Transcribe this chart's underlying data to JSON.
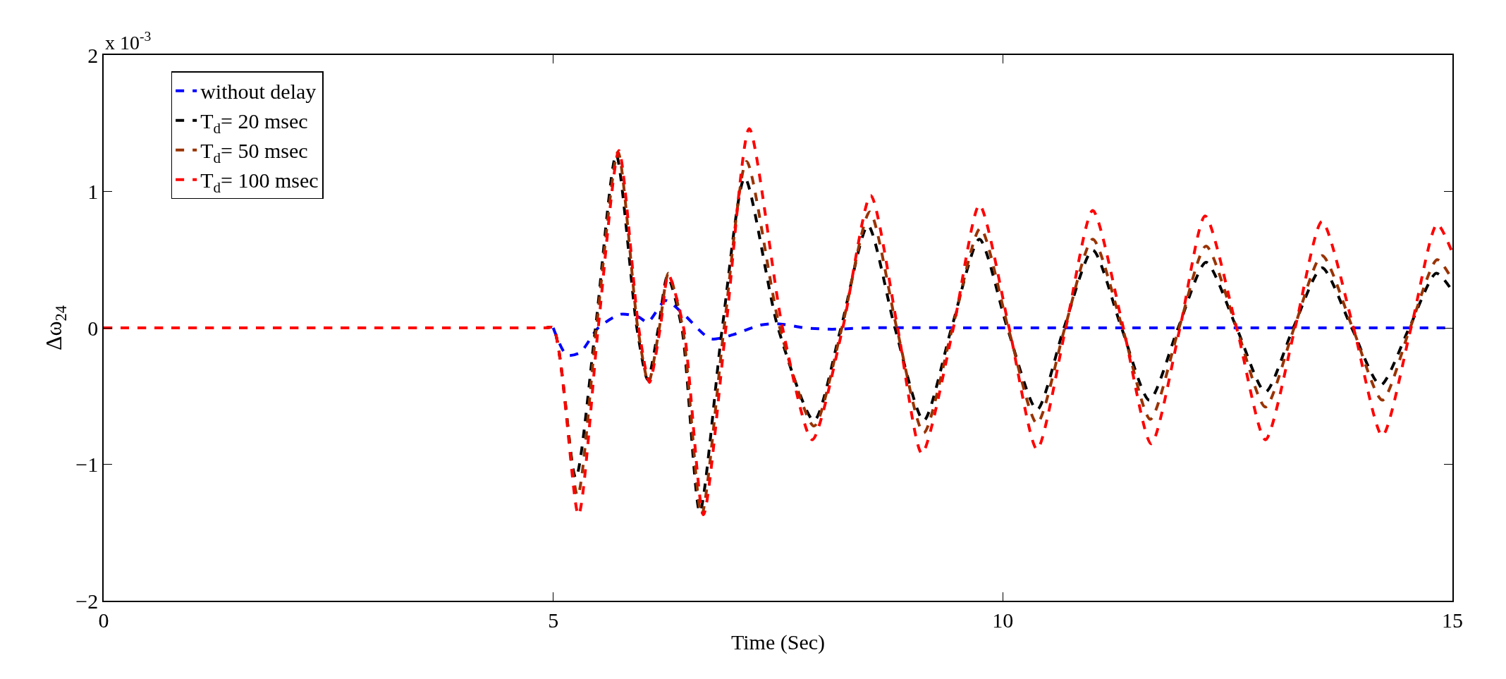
{
  "chart_data": {
    "type": "line",
    "xlabel": "Time (Sec)",
    "ylabel": "Δω$_{24}$",
    "annotations": [
      "x 10$^{-3}$"
    ],
    "xlim": [
      0,
      15
    ],
    "xticks": [
      0,
      5,
      10,
      15
    ],
    "ylim": [
      -2,
      2
    ],
    "yticks": [
      -2,
      -1,
      0,
      1,
      2
    ],
    "legend": "top left",
    "line_style": "dashed",
    "marker": "none",
    "series": [
      {
        "name": "without delay",
        "color": "#0000ff",
        "x": [
          5,
          5.15,
          5.3,
          5.5,
          5.75,
          5.95,
          6.05,
          6.25,
          6.45,
          6.75,
          7.0,
          7.3,
          7.5,
          7.8,
          8.1,
          8.5,
          10,
          12,
          15
        ],
        "values": [
          0,
          -0.2,
          -0.18,
          0,
          0.1,
          0.08,
          0.04,
          0.2,
          0.1,
          -0.08,
          -0.05,
          0.02,
          0.03,
          0,
          -0.01,
          0,
          0,
          0,
          0
        ]
      },
      {
        "name": "T$_{d}$= 20 msec",
        "color": "#000000",
        "x": [
          0,
          4.9,
          5,
          5.25,
          5.47,
          5.7,
          5.93,
          6.05,
          6.17,
          6.27,
          6.43,
          6.63,
          6.88,
          7.13,
          7.5,
          7.9,
          8.2,
          8.5,
          8.8,
          9.12,
          9.43,
          9.74,
          10.05,
          10.38,
          10.68,
          11.0,
          11.32,
          11.63,
          11.95,
          12.26,
          12.6,
          12.92,
          13.23,
          13.55,
          13.88,
          14.2,
          14.52,
          14.82,
          15
        ],
        "values": [
          0,
          0,
          0,
          -1.1,
          0,
          1.27,
          0,
          -0.38,
          0,
          0.38,
          0,
          -1.35,
          0,
          1.1,
          0,
          -0.68,
          0,
          0.75,
          0,
          -0.68,
          0,
          0.65,
          0,
          -0.6,
          0,
          0.57,
          0,
          -0.53,
          0,
          0.48,
          0,
          -0.47,
          0,
          0.44,
          0,
          -0.42,
          0,
          0.4,
          0.27
        ]
      },
      {
        "name": "T$_{d}$= 50 msec",
        "color": "#993300",
        "x": [
          0,
          4.9,
          5,
          5.27,
          5.48,
          5.72,
          5.94,
          6.06,
          6.18,
          6.28,
          6.44,
          6.65,
          6.9,
          7.15,
          7.52,
          7.9,
          8.21,
          8.52,
          8.82,
          9.12,
          9.44,
          9.75,
          10.06,
          10.38,
          10.69,
          11.0,
          11.33,
          11.64,
          11.96,
          12.26,
          12.6,
          12.92,
          13.24,
          13.55,
          13.89,
          14.22,
          14.53,
          14.83,
          15
        ],
        "values": [
          0,
          0,
          0,
          -1.23,
          0,
          1.29,
          0,
          -0.4,
          0,
          0.4,
          0,
          -1.37,
          0,
          1.22,
          0,
          -0.72,
          0,
          0.85,
          0,
          -0.77,
          0,
          0.73,
          0,
          -0.7,
          0,
          0.65,
          0,
          -0.67,
          0,
          0.6,
          0,
          -0.58,
          0,
          0.53,
          0,
          -0.53,
          0,
          0.5,
          0.35
        ]
      },
      {
        "name": "T$_{d}$= 100 msec",
        "color": "#ff0000",
        "x": [
          0,
          4.9,
          5,
          5.28,
          5.5,
          5.73,
          5.95,
          6.07,
          6.19,
          6.28,
          6.45,
          6.67,
          6.92,
          7.18,
          7.55,
          7.88,
          8.22,
          8.53,
          8.83,
          9.1,
          9.45,
          9.74,
          10.07,
          10.38,
          10.7,
          11.0,
          11.34,
          11.65,
          11.97,
          12.25,
          12.6,
          12.92,
          13.25,
          13.55,
          13.9,
          14.22,
          14.54,
          14.83,
          15
        ],
        "values": [
          0,
          0,
          0,
          -1.37,
          0,
          1.3,
          0,
          -0.4,
          0,
          0.39,
          0,
          -1.37,
          0,
          1.46,
          0,
          -0.82,
          0,
          0.97,
          0,
          -0.92,
          0,
          0.9,
          0,
          -0.89,
          0,
          0.86,
          0,
          -0.85,
          0,
          0.82,
          0,
          -0.82,
          0,
          0.78,
          0,
          -0.79,
          0,
          0.76,
          0.55
        ]
      }
    ]
  }
}
